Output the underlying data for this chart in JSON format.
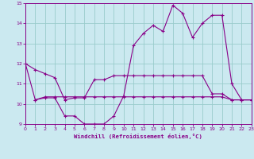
{
  "title": "Windchill (Refroidissement éolien,°C)",
  "background_color": "#cbe9f0",
  "line_color": "#880088",
  "grid_color": "#99cccc",
  "xlim": [
    0,
    23
  ],
  "ylim": [
    9,
    15
  ],
  "xticks": [
    0,
    1,
    2,
    3,
    4,
    5,
    6,
    7,
    8,
    9,
    10,
    11,
    12,
    13,
    14,
    15,
    16,
    17,
    18,
    19,
    20,
    21,
    22,
    23
  ],
  "yticks": [
    9,
    10,
    11,
    12,
    13,
    14,
    15
  ],
  "series1_x": [
    0,
    1,
    2,
    3,
    4,
    5,
    6,
    7,
    8,
    9,
    10,
    11,
    12,
    13,
    14,
    15,
    16,
    17,
    18,
    19,
    20,
    21,
    22,
    23
  ],
  "series1_y": [
    12.0,
    11.7,
    11.5,
    11.3,
    10.2,
    10.3,
    10.3,
    11.2,
    11.2,
    11.4,
    11.4,
    11.4,
    11.4,
    11.4,
    11.4,
    11.4,
    11.4,
    11.4,
    11.4,
    10.5,
    10.5,
    10.2,
    10.2,
    10.2
  ],
  "series2_x": [
    0,
    1,
    2,
    3,
    4,
    5,
    6,
    7,
    8,
    9,
    10,
    11,
    12,
    13,
    14,
    15,
    16,
    17,
    18,
    19,
    20,
    21,
    22,
    23
  ],
  "series2_y": [
    12.0,
    10.2,
    10.35,
    10.35,
    10.35,
    10.35,
    10.35,
    10.35,
    10.35,
    10.35,
    10.35,
    10.35,
    10.35,
    10.35,
    10.35,
    10.35,
    10.35,
    10.35,
    10.35,
    10.35,
    10.35,
    10.2,
    10.2,
    10.2
  ],
  "series3_x": [
    1,
    2,
    3,
    4,
    5,
    6,
    7,
    8,
    9,
    10,
    11,
    12,
    13,
    14,
    15,
    16,
    17,
    18,
    19,
    20,
    21,
    22,
    23
  ],
  "series3_y": [
    10.2,
    10.3,
    10.3,
    9.4,
    9.4,
    9.0,
    9.0,
    9.0,
    9.4,
    10.4,
    12.9,
    13.5,
    13.9,
    13.6,
    14.9,
    14.5,
    13.3,
    14.0,
    14.4,
    14.4,
    11.0,
    10.2,
    10.2
  ]
}
